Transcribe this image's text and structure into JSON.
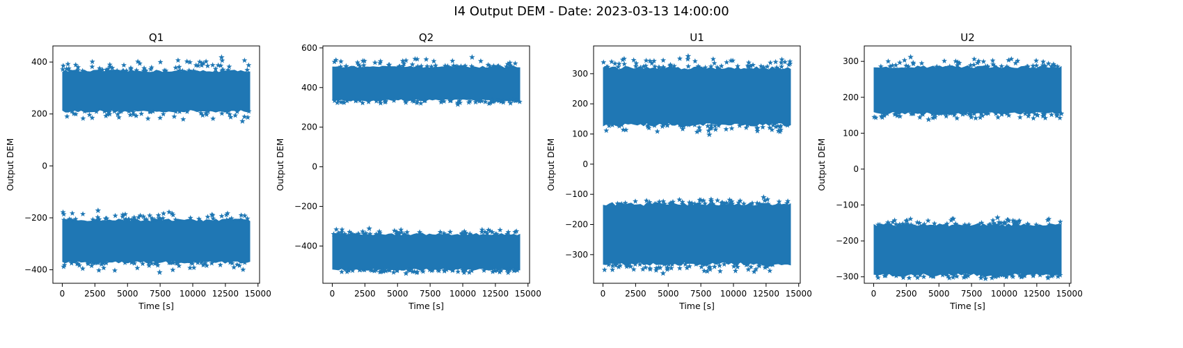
{
  "figure": {
    "suptitle": "I4 Output DEM - Date: 2023-03-13 14:00:00"
  },
  "style": {
    "marker_color": "#1f77b4",
    "marker": "star"
  },
  "chart_data": [
    {
      "type": "scatter",
      "title": "Q1",
      "xlabel": "Time [s]",
      "ylabel": "Output DEM",
      "xlim": [
        -720,
        15120
      ],
      "ylim": [
        -452,
        462
      ],
      "xticks": [
        0,
        2500,
        5000,
        7500,
        10000,
        12500,
        15000
      ],
      "yticks": [
        -400,
        -200,
        0,
        200,
        400
      ],
      "x_range": [
        0,
        14400
      ],
      "bands": [
        {
          "center": 288,
          "core_half_width": 78,
          "outlier_max": 418,
          "outlier_min": 172
        },
        {
          "center": -290,
          "core_half_width": 82,
          "outlier_max": -172,
          "outlier_min": -410
        }
      ]
    },
    {
      "type": "scatter",
      "title": "Q2",
      "xlabel": "Time [s]",
      "ylabel": "Output DEM",
      "xlim": [
        -720,
        15120
      ],
      "ylim": [
        -588,
        610
      ],
      "xticks": [
        0,
        2500,
        5000,
        7500,
        10000,
        12500,
        15000
      ],
      "yticks": [
        -400,
        -200,
        0,
        200,
        400,
        600
      ],
      "x_range": [
        0,
        14400
      ],
      "bands": [
        {
          "center": 420,
          "core_half_width": 85,
          "outlier_max": 553,
          "outlier_min": 315
        },
        {
          "center": -430,
          "core_half_width": 90,
          "outlier_max": -312,
          "outlier_min": -538
        }
      ]
    },
    {
      "type": "scatter",
      "title": "U1",
      "xlabel": "Time [s]",
      "ylabel": "Output DEM",
      "xlim": [
        -720,
        15120
      ],
      "ylim": [
        -395,
        392
      ],
      "xticks": [
        0,
        2500,
        5000,
        7500,
        10000,
        12500,
        15000
      ],
      "yticks": [
        -300,
        -200,
        -100,
        0,
        100,
        200,
        300
      ],
      "x_range": [
        0,
        14400
      ],
      "bands": [
        {
          "center": 225,
          "core_half_width": 95,
          "outlier_max": 358,
          "outlier_min": 98
        },
        {
          "center": -232,
          "core_half_width": 100,
          "outlier_max": -110,
          "outlier_min": -362
        }
      ]
    },
    {
      "type": "scatter",
      "title": "U2",
      "xlabel": "Time [s]",
      "ylabel": "Output DEM",
      "xlim": [
        -720,
        15120
      ],
      "ylim": [
        -318,
        343
      ],
      "xticks": [
        0,
        2500,
        5000,
        7500,
        10000,
        12500,
        15000
      ],
      "yticks": [
        -300,
        -200,
        -100,
        0,
        100,
        200,
        300
      ],
      "x_range": [
        0,
        14400
      ],
      "bands": [
        {
          "center": 220,
          "core_half_width": 65,
          "outlier_max": 312,
          "outlier_min": 138
        },
        {
          "center": -225,
          "core_half_width": 70,
          "outlier_max": -135,
          "outlier_min": -305
        }
      ]
    }
  ]
}
